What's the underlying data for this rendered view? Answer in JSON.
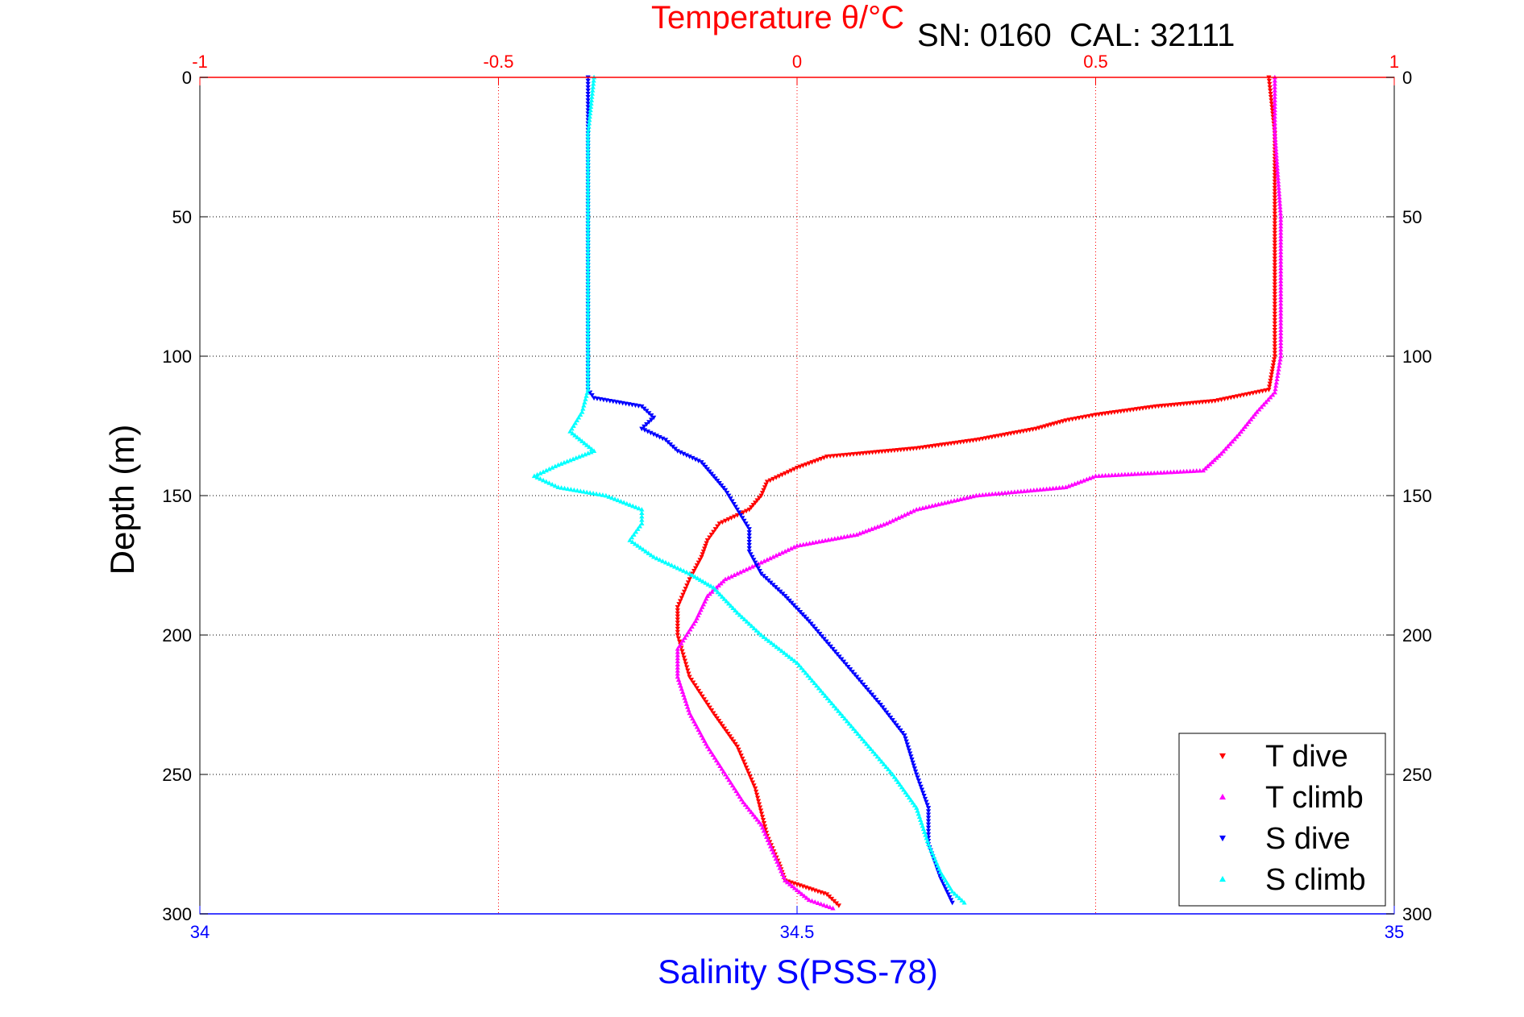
{
  "chart_data": {
    "type": "scatter",
    "title": "",
    "annotation": "SN: 0160  CAL: 32111",
    "ylabel": "Depth (m)",
    "ylim": [
      0,
      300
    ],
    "y_inverted": true,
    "yticks": [
      "0",
      "50",
      "100",
      "150",
      "200",
      "250",
      "300"
    ],
    "top_axis": {
      "label": "Temperature θ/°C",
      "range": [
        -1,
        1
      ],
      "ticks": [
        "-1",
        "-0.5",
        "0",
        "0.5",
        "1"
      ],
      "color": "#ff0000"
    },
    "bottom_axis": {
      "label": "Salinity S(PSS-78)",
      "range": [
        34,
        35
      ],
      "ticks": [
        "34",
        "34.5",
        "35"
      ],
      "color": "#0000ff"
    },
    "grid": true,
    "legend_position": "bottom-right",
    "series": [
      {
        "name": "T dive",
        "axis": "top",
        "color": "#ff0000",
        "marker": "triangle-down",
        "points": [
          [
            0.79,
            0
          ],
          [
            0.8,
            20
          ],
          [
            0.8,
            50
          ],
          [
            0.8,
            80
          ],
          [
            0.8,
            100
          ],
          [
            0.79,
            112
          ],
          [
            0.7,
            116
          ],
          [
            0.6,
            118
          ],
          [
            0.5,
            121
          ],
          [
            0.45,
            123
          ],
          [
            0.4,
            126
          ],
          [
            0.3,
            130
          ],
          [
            0.2,
            133
          ],
          [
            0.1,
            135
          ],
          [
            0.05,
            136
          ],
          [
            0.0,
            140
          ],
          [
            -0.05,
            145
          ],
          [
            -0.06,
            150
          ],
          [
            -0.08,
            155
          ],
          [
            -0.13,
            160
          ],
          [
            -0.15,
            166
          ],
          [
            -0.16,
            172
          ],
          [
            -0.18,
            180
          ],
          [
            -0.2,
            190
          ],
          [
            -0.2,
            200
          ],
          [
            -0.18,
            215
          ],
          [
            -0.14,
            228
          ],
          [
            -0.1,
            240
          ],
          [
            -0.07,
            255
          ],
          [
            -0.05,
            272
          ],
          [
            -0.03,
            282
          ],
          [
            -0.02,
            288
          ],
          [
            0.05,
            293
          ],
          [
            0.07,
            297
          ]
        ]
      },
      {
        "name": "T climb",
        "axis": "top",
        "color": "#ff00ff",
        "marker": "triangle-up",
        "points": [
          [
            0.8,
            0
          ],
          [
            0.8,
            20
          ],
          [
            0.81,
            50
          ],
          [
            0.81,
            80
          ],
          [
            0.81,
            100
          ],
          [
            0.8,
            113
          ],
          [
            0.77,
            120
          ],
          [
            0.74,
            128
          ],
          [
            0.71,
            135
          ],
          [
            0.68,
            141
          ],
          [
            0.5,
            143
          ],
          [
            0.45,
            147
          ],
          [
            0.3,
            150
          ],
          [
            0.2,
            155
          ],
          [
            0.15,
            160
          ],
          [
            0.1,
            164
          ],
          [
            0.0,
            168
          ],
          [
            -0.05,
            173
          ],
          [
            -0.08,
            176
          ],
          [
            -0.12,
            180
          ],
          [
            -0.15,
            186
          ],
          [
            -0.17,
            195
          ],
          [
            -0.2,
            205
          ],
          [
            -0.2,
            215
          ],
          [
            -0.18,
            228
          ],
          [
            -0.15,
            240
          ],
          [
            -0.12,
            250
          ],
          [
            -0.09,
            260
          ],
          [
            -0.06,
            268
          ],
          [
            -0.04,
            278
          ],
          [
            -0.02,
            288
          ],
          [
            0.02,
            295
          ],
          [
            0.06,
            298
          ]
        ]
      },
      {
        "name": "S dive",
        "axis": "bottom",
        "color": "#0000ff",
        "marker": "triangle-down",
        "points": [
          [
            34.325,
            0
          ],
          [
            34.325,
            20
          ],
          [
            34.325,
            50
          ],
          [
            34.325,
            80
          ],
          [
            34.325,
            100
          ],
          [
            34.325,
            112
          ],
          [
            34.33,
            115
          ],
          [
            34.37,
            118
          ],
          [
            34.38,
            122
          ],
          [
            34.37,
            126
          ],
          [
            34.39,
            130
          ],
          [
            34.4,
            134
          ],
          [
            34.42,
            138
          ],
          [
            34.43,
            143
          ],
          [
            34.44,
            148
          ],
          [
            34.45,
            155
          ],
          [
            34.46,
            162
          ],
          [
            34.46,
            170
          ],
          [
            34.47,
            178
          ],
          [
            34.49,
            186
          ],
          [
            34.51,
            195
          ],
          [
            34.53,
            205
          ],
          [
            34.55,
            215
          ],
          [
            34.57,
            225
          ],
          [
            34.59,
            236
          ],
          [
            34.6,
            250
          ],
          [
            34.61,
            262
          ],
          [
            34.61,
            275
          ],
          [
            34.62,
            287
          ],
          [
            34.63,
            296
          ]
        ]
      },
      {
        "name": "S climb",
        "axis": "bottom",
        "color": "#00ffff",
        "marker": "triangle-up",
        "points": [
          [
            34.33,
            0
          ],
          [
            34.325,
            20
          ],
          [
            34.325,
            50
          ],
          [
            34.325,
            80
          ],
          [
            34.325,
            100
          ],
          [
            34.325,
            112
          ],
          [
            34.32,
            120
          ],
          [
            34.31,
            127
          ],
          [
            34.33,
            134
          ],
          [
            34.3,
            139
          ],
          [
            34.28,
            143
          ],
          [
            34.3,
            147
          ],
          [
            34.34,
            150
          ],
          [
            34.37,
            155
          ],
          [
            34.37,
            160
          ],
          [
            34.36,
            166
          ],
          [
            34.38,
            172
          ],
          [
            34.41,
            178
          ],
          [
            34.43,
            183
          ],
          [
            34.45,
            192
          ],
          [
            34.47,
            200
          ],
          [
            34.5,
            210
          ],
          [
            34.52,
            220
          ],
          [
            34.54,
            230
          ],
          [
            34.56,
            240
          ],
          [
            34.58,
            250
          ],
          [
            34.6,
            262
          ],
          [
            34.61,
            275
          ],
          [
            34.62,
            285
          ],
          [
            34.63,
            292
          ],
          [
            34.64,
            296
          ]
        ]
      }
    ]
  }
}
